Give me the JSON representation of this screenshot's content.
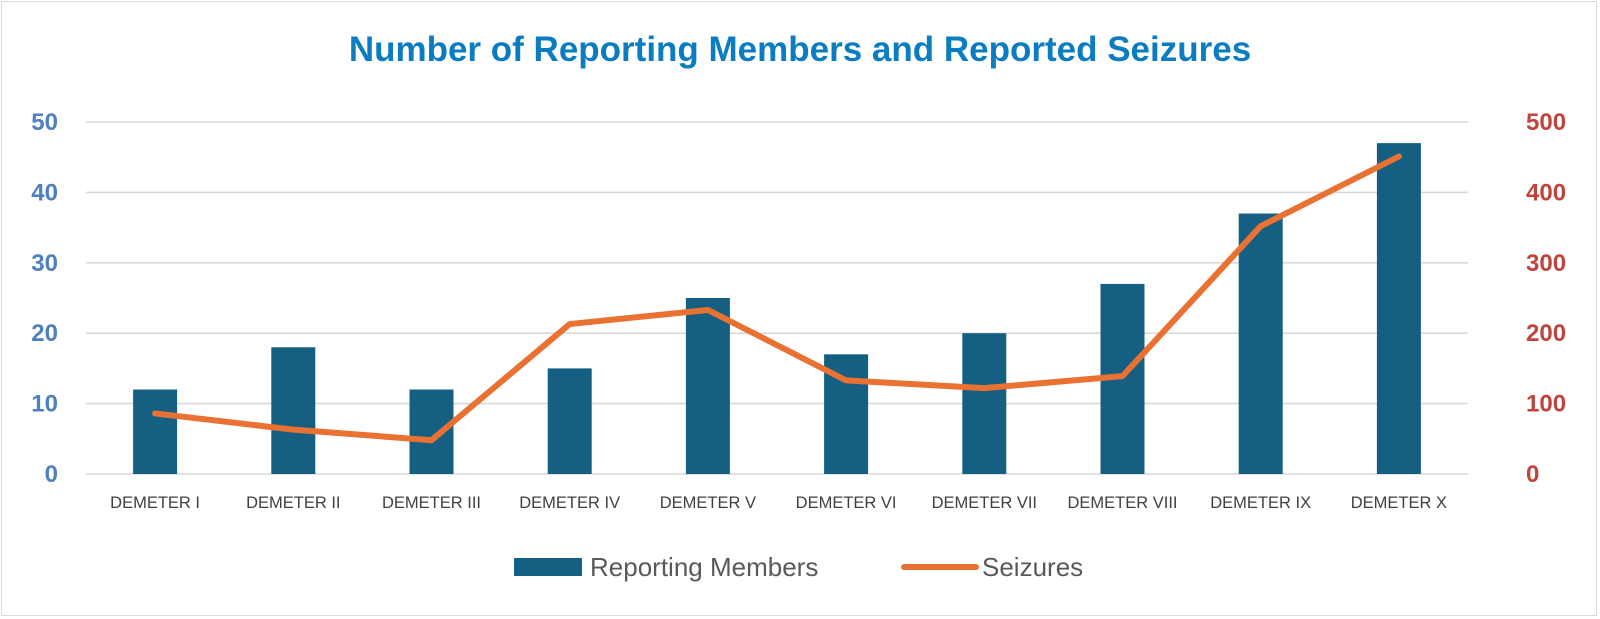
{
  "chart_data": {
    "type": "bar",
    "title": "Number of Reporting Members and Reported Seizures",
    "categories": [
      "DEMETER I",
      "DEMETER II",
      "DEMETER III",
      "DEMETER IV",
      "DEMETER V",
      "DEMETER VI",
      "DEMETER VII",
      "DEMETER VIII",
      "DEMETER IX",
      "DEMETER X"
    ],
    "series": [
      {
        "name": "Reporting Members",
        "type": "bar",
        "axis": "left",
        "color": "#156082",
        "values": [
          12,
          18,
          12,
          15,
          25,
          17,
          20,
          27,
          37,
          47
        ]
      },
      {
        "name": "Seizures",
        "type": "line",
        "axis": "right",
        "color": "#e97132",
        "values": [
          86,
          63,
          48,
          213,
          233,
          133,
          122,
          139,
          352,
          451
        ]
      }
    ],
    "ylim_left": [
      0,
      50
    ],
    "ylim_right": [
      0,
      500
    ],
    "left_ticks": [
      "0",
      "10",
      "20",
      "30",
      "40",
      "50"
    ],
    "right_ticks": [
      "0",
      "100",
      "200",
      "300",
      "400",
      "500"
    ],
    "left_axis_color": "#4e7fbf",
    "right_axis_color": "#c0443c",
    "grid": true,
    "legend_position": "bottom"
  }
}
